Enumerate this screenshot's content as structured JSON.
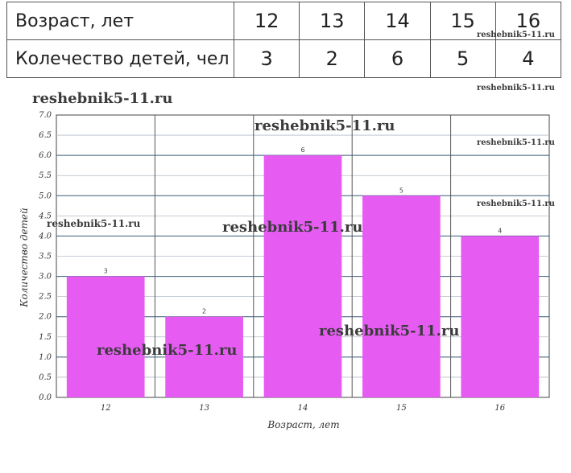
{
  "table": {
    "row_header_1": "Возраст, лет",
    "row_header_2": "Колечество детей, чел",
    "ages": [
      "12",
      "13",
      "14",
      "15",
      "16"
    ],
    "counts": [
      "3",
      "2",
      "6",
      "5",
      "4"
    ]
  },
  "watermarks": {
    "text": "reshebnik5-11.ru"
  },
  "chart_data": {
    "type": "bar",
    "categories": [
      "12",
      "13",
      "14",
      "15",
      "16"
    ],
    "values": [
      3,
      2,
      6,
      5,
      4
    ],
    "data_labels": [
      "3",
      "2",
      "6",
      "5",
      "4"
    ],
    "xlabel": "Возраст, лет",
    "ylabel": "Количество детей",
    "ylim": [
      0,
      7
    ],
    "ytick_step": 0.5,
    "yticks": [
      "0.0",
      "0.5",
      "1.0",
      "1.5",
      "2.0",
      "2.5",
      "3.0",
      "3.5",
      "4.0",
      "4.5",
      "5.0",
      "5.5",
      "6.0",
      "6.5",
      "7.0"
    ],
    "bar_color": "#e65cf2",
    "grid": true
  }
}
